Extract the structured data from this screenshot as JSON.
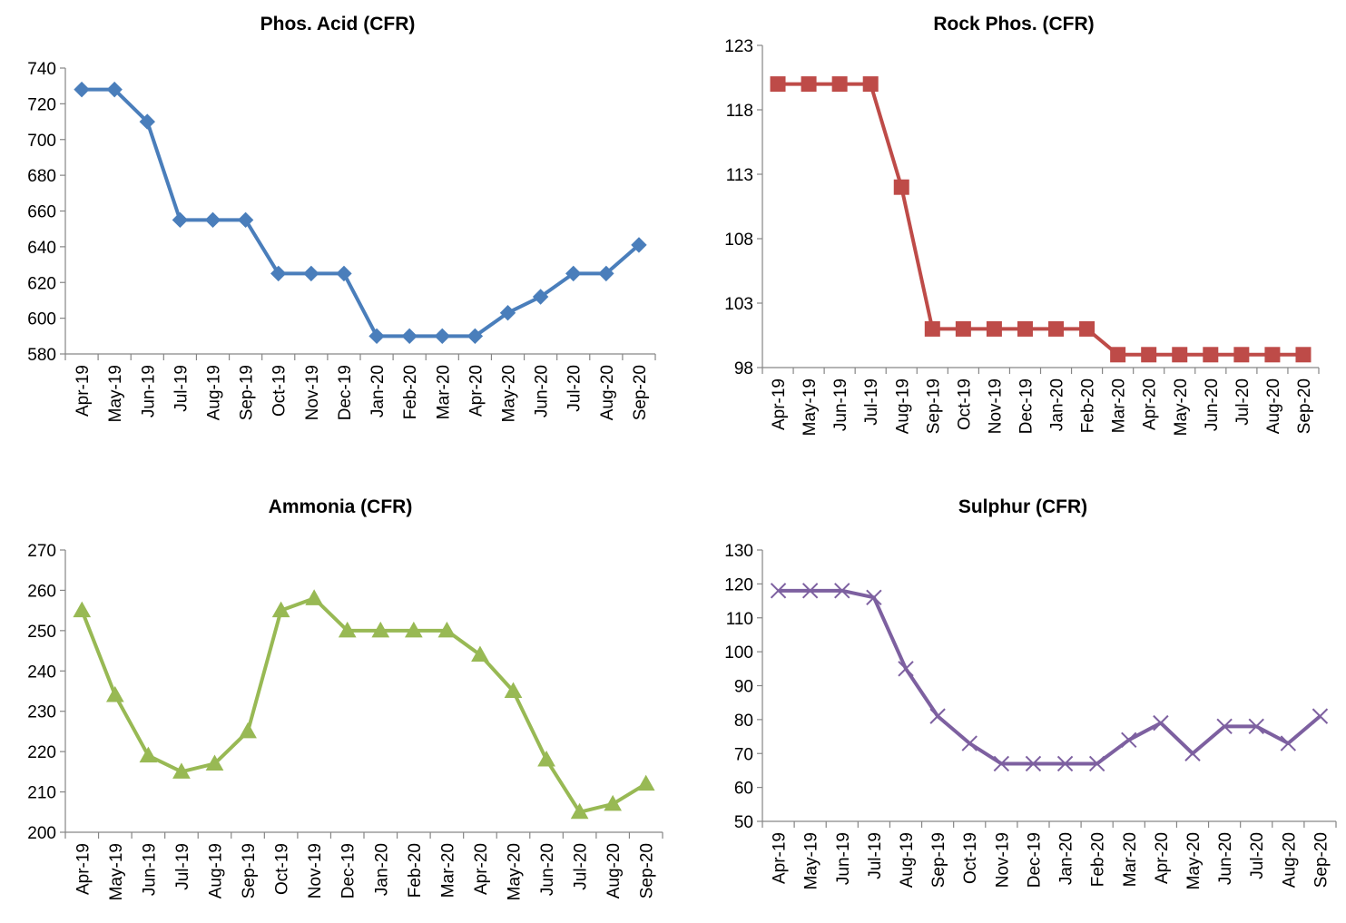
{
  "chart_data": [
    {
      "type": "line",
      "title": "Phos. Acid (CFR)",
      "categories": [
        "Apr-19",
        "May-19",
        "Jun-19",
        "Jul-19",
        "Aug-19",
        "Sep-19",
        "Oct-19",
        "Nov-19",
        "Dec-19",
        "Jan-20",
        "Feb-20",
        "Mar-20",
        "Apr-20",
        "May-20",
        "Jun-20",
        "Jul-20",
        "Aug-20",
        "Sep-20"
      ],
      "series": [
        {
          "values": [
            728,
            728,
            710,
            655,
            655,
            655,
            625,
            625,
            625,
            590,
            590,
            590,
            590,
            603,
            612,
            625,
            625,
            641
          ]
        }
      ],
      "ylim": [
        580,
        740
      ],
      "yticks": [
        580,
        600,
        620,
        640,
        660,
        680,
        700,
        720,
        740
      ],
      "color": "#4A7EBB",
      "marker": "diamond",
      "grid": false,
      "legend": "none"
    },
    {
      "type": "line",
      "title": "Rock Phos. (CFR)",
      "categories": [
        "Apr-19",
        "May-19",
        "Jun-19",
        "Jul-19",
        "Aug-19",
        "Sep-19",
        "Oct-19",
        "Nov-19",
        "Dec-19",
        "Jan-20",
        "Feb-20",
        "Mar-20",
        "Apr-20",
        "May-20",
        "Jun-20",
        "Jul-20",
        "Aug-20",
        "Sep-20"
      ],
      "series": [
        {
          "values": [
            120,
            120,
            120,
            120,
            112,
            101,
            101,
            101,
            101,
            101,
            101,
            99,
            99,
            99,
            99,
            99,
            99,
            99
          ]
        }
      ],
      "ylim": [
        98,
        123
      ],
      "yticks": [
        98,
        103,
        108,
        113,
        118,
        123
      ],
      "color": "#BE4B48",
      "marker": "square",
      "grid": false,
      "legend": "none"
    },
    {
      "type": "line",
      "title": "Ammonia (CFR)",
      "categories": [
        "Apr-19",
        "May-19",
        "Jun-19",
        "Jul-19",
        "Aug-19",
        "Sep-19",
        "Oct-19",
        "Nov-19",
        "Dec-19",
        "Jan-20",
        "Feb-20",
        "Mar-20",
        "Apr-20",
        "May-20",
        "Jun-20",
        "Jul-20",
        "Aug-20",
        "Sep-20"
      ],
      "series": [
        {
          "values": [
            255,
            234,
            219,
            215,
            217,
            225,
            255,
            258,
            250,
            250,
            250,
            250,
            244,
            235,
            218,
            205,
            207,
            212
          ]
        }
      ],
      "ylim": [
        200,
        270
      ],
      "yticks": [
        200,
        210,
        220,
        230,
        240,
        250,
        260,
        270
      ],
      "color": "#98B954",
      "marker": "triangle",
      "grid": false,
      "legend": "none"
    },
    {
      "type": "line",
      "title": "Sulphur (CFR)",
      "categories": [
        "Apr-19",
        "May-19",
        "Jun-19",
        "Jul-19",
        "Aug-19",
        "Sep-19",
        "Oct-19",
        "Nov-19",
        "Dec-19",
        "Jan-20",
        "Feb-20",
        "Mar-20",
        "Apr-20",
        "May-20",
        "Jun-20",
        "Jul-20",
        "Aug-20",
        "Sep-20"
      ],
      "series": [
        {
          "values": [
            118,
            118,
            118,
            116,
            95,
            81,
            73,
            67,
            67,
            67,
            67,
            74,
            79,
            70,
            78,
            78,
            73,
            81
          ]
        }
      ],
      "ylim": [
        50,
        130
      ],
      "yticks": [
        50,
        60,
        70,
        80,
        90,
        100,
        110,
        120,
        130
      ],
      "color": "#7D60A0",
      "marker": "x",
      "grid": false,
      "legend": "none"
    }
  ]
}
